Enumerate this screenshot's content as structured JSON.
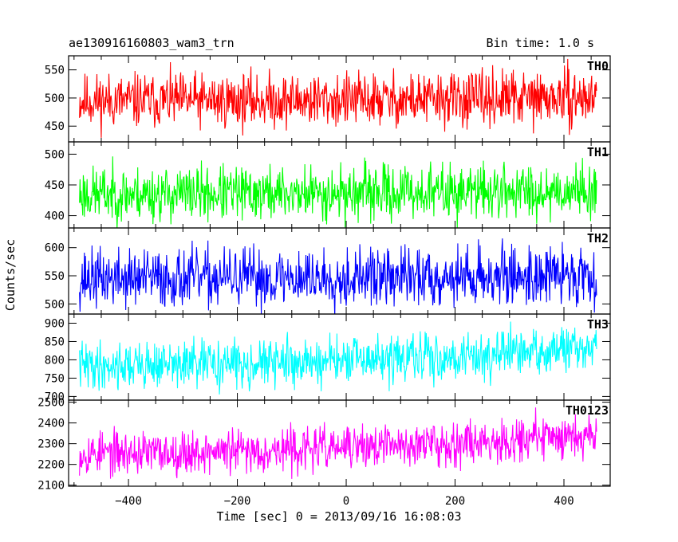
{
  "chart_data": {
    "type": "line",
    "title_left": "ae130916160803_wam3_trn",
    "title_right": "Bin time: 1.0 s",
    "xlabel": "Time [sec] 0 = 2013/09/16 16:08:03",
    "ylabel": "Counts/sec",
    "xlim": [
      -510,
      485
    ],
    "x_ticks": [
      -400,
      -200,
      0,
      200,
      400
    ],
    "x_tick_labels": [
      "−400",
      "−200",
      "0",
      "200",
      "400"
    ],
    "grid": false,
    "panels": [
      {
        "name": "TH0",
        "color": "#ff0000",
        "ylim": [
          422,
          575
        ],
        "y_ticks": [
          450,
          500,
          550
        ],
        "y_tick_labels": [
          "450",
          "500",
          "550"
        ],
        "x_range": [
          -490,
          460
        ],
        "mean": [
          495,
          500
        ],
        "noise": 24,
        "seed": 11
      },
      {
        "name": "TH1",
        "color": "#00ff00",
        "ylim": [
          380,
          520
        ],
        "y_ticks": [
          400,
          450,
          500
        ],
        "y_tick_labels": [
          "400",
          "450",
          "500"
        ],
        "x_range": [
          -490,
          460
        ],
        "mean": [
          435,
          442
        ],
        "noise": 22,
        "seed": 23
      },
      {
        "name": "TH2",
        "color": "#0000ff",
        "ylim": [
          482,
          635
        ],
        "y_ticks": [
          500,
          550,
          600
        ],
        "y_tick_labels": [
          "500",
          "550",
          "600"
        ],
        "x_range": [
          -490,
          460
        ],
        "mean": [
          545,
          552
        ],
        "noise": 26,
        "seed": 37
      },
      {
        "name": "TH3",
        "color": "#00ffff",
        "ylim": [
          690,
          925
        ],
        "y_ticks": [
          700,
          750,
          800,
          850,
          900
        ],
        "y_tick_labels": [
          "700",
          "750",
          "800",
          "850",
          "900"
        ],
        "x_range": [
          -490,
          460
        ],
        "mean": [
          785,
          830
        ],
        "noise": 32,
        "seed": 41
      },
      {
        "name": "TH0123",
        "color": "#ff00ff",
        "ylim": [
          2095,
          2510
        ],
        "y_ticks": [
          2100,
          2200,
          2300,
          2400,
          2500
        ],
        "y_tick_labels": [
          "2100",
          "2200",
          "2300",
          "2400",
          "2500"
        ],
        "x_range": [
          -490,
          460
        ],
        "mean": [
          2255,
          2350
        ],
        "noise": 52,
        "seed": 53
      }
    ]
  }
}
